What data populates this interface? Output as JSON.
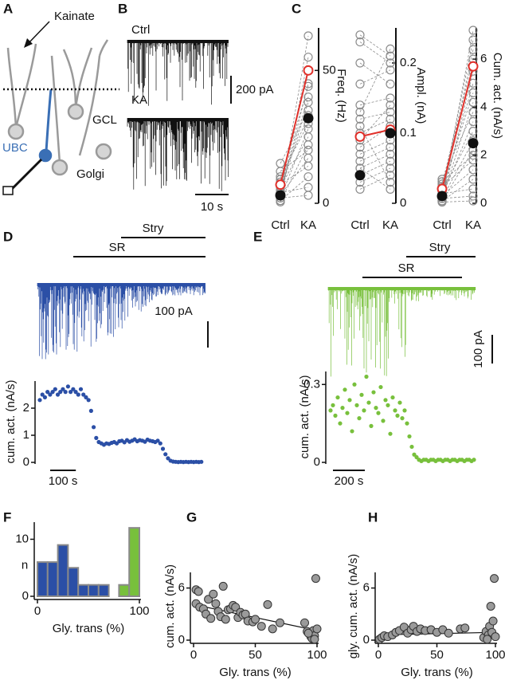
{
  "panel_letters": [
    "A",
    "B",
    "C",
    "D",
    "E",
    "F",
    "G",
    "H"
  ],
  "diagram": {
    "labels": [
      "Kainate",
      "GCL",
      "UBC",
      "Golgi"
    ]
  },
  "traces_b": {
    "labels": [
      "Ctrl",
      "KA"
    ],
    "scale_y": "200 pA",
    "scale_x": "10 s"
  },
  "chart_data": [
    {
      "type": "paired",
      "categories": [
        "Ctrl",
        "KA"
      ],
      "ylabel": "Freq. (Hz)",
      "ylim": [
        0,
        66
      ],
      "yticks": [
        0,
        50
      ],
      "pair_color": "#8c8c8c",
      "pairs": [
        [
          2,
          63
        ],
        [
          1,
          55
        ],
        [
          3,
          45
        ],
        [
          5,
          40
        ],
        [
          4,
          38
        ],
        [
          8,
          33
        ],
        [
          10,
          30
        ],
        [
          2,
          28
        ],
        [
          6,
          25
        ],
        [
          0.5,
          22
        ],
        [
          12,
          20
        ],
        [
          3,
          17
        ],
        [
          7,
          14
        ],
        [
          1,
          10
        ],
        [
          4,
          6
        ],
        [
          9,
          44
        ],
        [
          15,
          35
        ],
        [
          2,
          3
        ]
      ],
      "example": {
        "color": "#e0302a",
        "values": [
          7,
          50
        ]
      },
      "mean": {
        "color": "#111111",
        "values": [
          3,
          32
        ]
      }
    },
    {
      "type": "paired",
      "categories": [
        "Ctrl",
        "KA"
      ],
      "ylabel": "Ampl. (nA)",
      "ylim": [
        0,
        0.25
      ],
      "yticks": [
        0,
        0.1,
        0.2
      ],
      "pair_color": "#8c8c8c",
      "pairs": [
        [
          0.24,
          0.21
        ],
        [
          0.23,
          0.2
        ],
        [
          0.2,
          0.17
        ],
        [
          0.17,
          0.19
        ],
        [
          0.14,
          0.15
        ],
        [
          0.12,
          0.13
        ],
        [
          0.1,
          0.12
        ],
        [
          0.08,
          0.11
        ],
        [
          0.07,
          0.09
        ],
        [
          0.06,
          0.08
        ],
        [
          0.05,
          0.07
        ],
        [
          0.04,
          0.06
        ],
        [
          0.03,
          0.05
        ],
        [
          0.02,
          0.04
        ],
        [
          0.13,
          0.22
        ],
        [
          0.09,
          0.14
        ],
        [
          0.11,
          0.03
        ],
        [
          0.05,
          0.02
        ]
      ],
      "example": {
        "color": "#e0302a",
        "values": [
          0.095,
          0.105
        ]
      },
      "mean": {
        "color": "#111111",
        "values": [
          0.04,
          0.1
        ]
      }
    },
    {
      "type": "paired",
      "categories": [
        "Ctrl",
        "KA"
      ],
      "ylabel": "Cum. act. (nA/s)",
      "ylim": [
        0,
        7.3
      ],
      "yticks": [
        0,
        2,
        4,
        6
      ],
      "pair_color": "#8c8c8c",
      "pairs": [
        [
          0.2,
          7.2
        ],
        [
          0.5,
          6.8
        ],
        [
          0.3,
          6.4
        ],
        [
          0.8,
          6.0
        ],
        [
          0.1,
          5.5
        ],
        [
          0.4,
          5.0
        ],
        [
          0.6,
          4.6
        ],
        [
          0.2,
          4.2
        ],
        [
          1.0,
          3.8
        ],
        [
          0.3,
          3.4
        ],
        [
          0.5,
          3.0
        ],
        [
          0.2,
          2.6
        ],
        [
          0.1,
          2.2
        ],
        [
          0.7,
          1.8
        ],
        [
          0.3,
          1.4
        ],
        [
          0.1,
          1.0
        ],
        [
          0.4,
          0.6
        ],
        [
          0.2,
          0.3
        ],
        [
          0.9,
          2.0
        ],
        [
          0.05,
          0.1
        ]
      ],
      "example": {
        "color": "#e0302a",
        "values": [
          0.6,
          5.7
        ]
      },
      "mean": {
        "color": "#111111",
        "values": [
          0.3,
          2.5
        ]
      }
    },
    {
      "type": "scatter",
      "ylabel": "cum. act. (nA/s)",
      "ylim": [
        0,
        3
      ],
      "yticks": [
        0,
        1,
        2
      ],
      "xlim": [
        0,
        640
      ],
      "color": "#2b4fa6",
      "trace_labels": [
        "SR",
        "Stry"
      ],
      "trace_scale": "100 pA",
      "scalebar": {
        "value": 100,
        "label": "100 s"
      },
      "x": [
        0,
        10,
        20,
        30,
        40,
        50,
        60,
        70,
        80,
        90,
        100,
        110,
        120,
        130,
        140,
        150,
        160,
        170,
        180,
        190,
        200,
        210,
        220,
        230,
        240,
        250,
        260,
        270,
        280,
        290,
        300,
        310,
        320,
        330,
        340,
        350,
        360,
        370,
        380,
        390,
        400,
        410,
        420,
        430,
        440,
        450,
        460,
        470,
        480,
        490,
        500,
        510,
        520,
        530,
        540,
        550,
        560,
        570,
        580,
        590,
        600,
        610,
        620,
        630
      ],
      "values": [
        2.3,
        2.5,
        2.4,
        2.6,
        2.5,
        2.6,
        2.7,
        2.5,
        2.6,
        2.7,
        2.6,
        2.8,
        2.6,
        2.7,
        2.6,
        2.5,
        2.7,
        2.5,
        2.4,
        2.3,
        1.9,
        1.3,
        0.9,
        0.75,
        0.7,
        0.65,
        0.7,
        0.68,
        0.72,
        0.75,
        0.7,
        0.78,
        0.8,
        0.74,
        0.82,
        0.76,
        0.8,
        0.85,
        0.78,
        0.82,
        0.8,
        0.76,
        0.84,
        0.8,
        0.78,
        0.75,
        0.8,
        0.7,
        0.5,
        0.3,
        0.15,
        0.06,
        0.03,
        0.02,
        0.01,
        0.02,
        0.01,
        0.02,
        0.01,
        0.02,
        0.01,
        0.02,
        0.01,
        0.02
      ]
    },
    {
      "type": "scatter",
      "ylabel": "cum. act. (nA/s)",
      "ylim": [
        0,
        0.35
      ],
      "yticks": [
        0,
        0.3
      ],
      "xlim": [
        0,
        915
      ],
      "color": "#78c03c",
      "trace_labels": [
        "SR",
        "Stry"
      ],
      "trace_scale": "100 pA",
      "scalebar": {
        "value": 200,
        "label": "200 s"
      },
      "x": [
        0,
        15,
        30,
        45,
        60,
        75,
        90,
        105,
        120,
        135,
        150,
        165,
        180,
        195,
        210,
        225,
        240,
        255,
        270,
        285,
        300,
        315,
        330,
        345,
        360,
        375,
        390,
        405,
        420,
        435,
        450,
        465,
        480,
        495,
        510,
        525,
        540,
        555,
        570,
        585,
        600,
        615,
        630,
        645,
        660,
        675,
        690,
        705,
        720,
        735,
        750,
        765,
        780,
        795,
        810,
        825,
        840,
        855,
        870,
        885,
        900
      ],
      "values": [
        0.2,
        0.22,
        0.18,
        0.25,
        0.15,
        0.21,
        0.28,
        0.19,
        0.24,
        0.12,
        0.3,
        0.22,
        0.17,
        0.26,
        0.2,
        0.33,
        0.23,
        0.14,
        0.27,
        0.21,
        0.19,
        0.29,
        0.16,
        0.24,
        0.22,
        0.11,
        0.25,
        0.2,
        0.18,
        0.23,
        0.17,
        0.2,
        0.15,
        0.1,
        0.06,
        0.03,
        0.02,
        0.01,
        0.005,
        0.01,
        0.01,
        0.005,
        0.01,
        0.01,
        0.005,
        0.01,
        0.01,
        0.005,
        0.01,
        0.01,
        0.005,
        0.01,
        0.01,
        0.005,
        0.01,
        0.01,
        0.005,
        0.01,
        0.01,
        0.005,
        0.01
      ]
    },
    {
      "type": "histogram",
      "ylabel": "n",
      "xlabel": "Gly. trans (%)",
      "ylim": [
        0,
        13
      ],
      "yticks": [
        0,
        10
      ],
      "xlim": [
        0,
        100
      ],
      "xticks": [
        0,
        100
      ],
      "bins": [
        0,
        10,
        20,
        30,
        40,
        50,
        60,
        70,
        80,
        90,
        100
      ],
      "values": [
        6,
        6,
        9,
        5,
        2,
        2,
        2,
        0,
        2,
        12
      ],
      "colors": [
        "#2b4fa6",
        "#2b4fa6",
        "#2b4fa6",
        "#2b4fa6",
        "#2b4fa6",
        "#2b4fa6",
        "#2b4fa6",
        "#2b4fa6",
        "#78c03c",
        "#78c03c"
      ],
      "edgecolor": "#8a8a8a"
    },
    {
      "type": "scatter",
      "ylabel": "cum. act. (nA/s)",
      "xlabel": "Gly. trans (%)",
      "xlim": [
        0,
        100
      ],
      "ylim": [
        0,
        7.8
      ],
      "xticks": [
        0,
        50,
        100
      ],
      "yticks": [
        0,
        6
      ],
      "color": "#9a9a9a",
      "edgecolor": "#333333",
      "x": [
        2,
        4,
        2,
        5,
        8,
        10,
        12,
        14,
        16,
        18,
        20,
        22,
        24,
        26,
        28,
        30,
        32,
        34,
        36,
        38,
        40,
        42,
        44,
        48,
        50,
        55,
        60,
        64,
        70,
        90,
        92,
        94,
        95,
        96,
        97,
        98,
        99,
        100,
        98,
        93
      ],
      "values": [
        5.8,
        5.6,
        4.2,
        3.8,
        3.6,
        3.0,
        4.7,
        2.5,
        5.3,
        4.2,
        3.3,
        2.7,
        6.2,
        2.4,
        3.5,
        3.6,
        4.0,
        3.8,
        2.6,
        3.2,
        2.9,
        3.0,
        2.2,
        2.1,
        2.4,
        1.6,
        4.1,
        1.3,
        2.0,
        2.0,
        1.0,
        0.7,
        0.4,
        0.2,
        1.1,
        0.5,
        7.1,
        1.3,
        0.1,
        0.8
      ],
      "fit": {
        "x": [
          0,
          100
        ],
        "values": [
          4.1,
          1.1
        ]
      }
    },
    {
      "type": "scatter",
      "ylabel": "gly. cum. act. (nA/s)",
      "xlabel": "Gly. trans (%)",
      "xlim": [
        0,
        100
      ],
      "ylim": [
        0,
        7.8
      ],
      "xticks": [
        0,
        50,
        100
      ],
      "yticks": [
        0,
        6
      ],
      "color": "#9a9a9a",
      "edgecolor": "#333333",
      "x": [
        1,
        3,
        5,
        8,
        12,
        15,
        18,
        22,
        25,
        28,
        30,
        33,
        36,
        40,
        45,
        50,
        55,
        60,
        70,
        74,
        90,
        92,
        94,
        95,
        96,
        97,
        98,
        99,
        100,
        93
      ],
      "values": [
        0.1,
        0.3,
        0.5,
        0.4,
        0.6,
        0.9,
        1.1,
        1.5,
        0.8,
        1.2,
        1.6,
        1.0,
        1.3,
        1.1,
        1.2,
        0.9,
        1.2,
        0.8,
        1.3,
        1.4,
        0.3,
        1.0,
        0.6,
        1.6,
        3.9,
        0.9,
        2.2,
        7.1,
        0.4,
        0.1
      ],
      "fit": {
        "x": [
          0,
          100
        ],
        "values": [
          0.6,
          0.9
        ]
      }
    }
  ]
}
